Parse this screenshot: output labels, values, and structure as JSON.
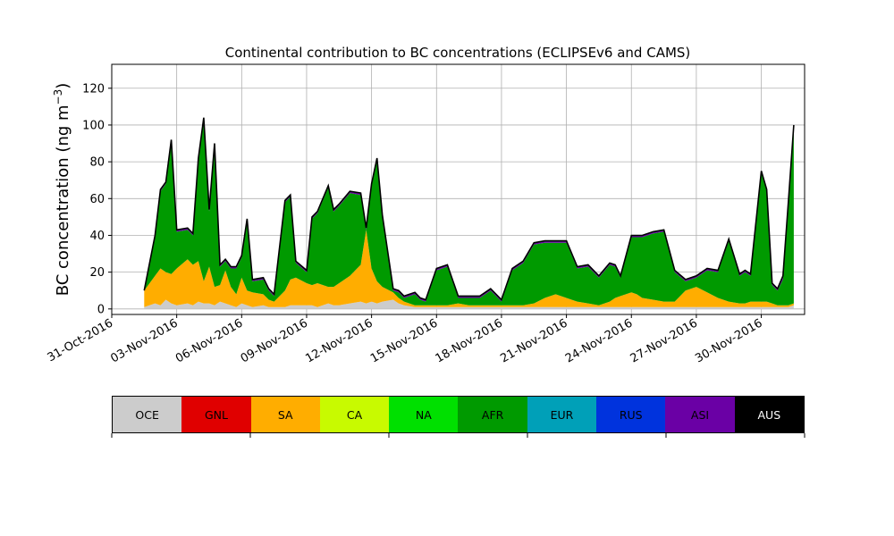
{
  "chart_data": {
    "type": "area",
    "stacked": true,
    "title": "Continental contribution to BC concentrations (ECLIPSEv6 and CAMS)",
    "ylabel": "BC concentration (ng m",
    "ylabel_sup": "−3",
    "ylabel_close": ")",
    "xlabel": "",
    "xlim": [
      "2016-10-31",
      "2016-12-02"
    ],
    "ylim": [
      -3,
      133
    ],
    "grid": true,
    "yticks": [
      0,
      20,
      40,
      60,
      80,
      100,
      120
    ],
    "xticks": [
      "31-Oct-2016",
      "03-Nov-2016",
      "06-Nov-2016",
      "09-Nov-2016",
      "12-Nov-2016",
      "15-Nov-2016",
      "18-Nov-2016",
      "21-Nov-2016",
      "24-Nov-2016",
      "27-Nov-2016",
      "30-Nov-2016"
    ],
    "legend": {
      "type": "colorbar",
      "placement": "bottom"
    },
    "x": [
      "2016-11-01T12:00",
      "2016-11-02T00:00",
      "2016-11-02T06:00",
      "2016-11-02T12:00",
      "2016-11-02T18:00",
      "2016-11-03T00:00",
      "2016-11-03T12:00",
      "2016-11-03T18:00",
      "2016-11-04T00:00",
      "2016-11-04T06:00",
      "2016-11-04T12:00",
      "2016-11-04T18:00",
      "2016-11-05T00:00",
      "2016-11-05T06:00",
      "2016-11-05T12:00",
      "2016-11-05T18:00",
      "2016-11-06T00:00",
      "2016-11-06T06:00",
      "2016-11-06T12:00",
      "2016-11-07T00:00",
      "2016-11-07T06:00",
      "2016-11-07T12:00",
      "2016-11-08T00:00",
      "2016-11-08T06:00",
      "2016-11-08T12:00",
      "2016-11-09T00:00",
      "2016-11-09T06:00",
      "2016-11-09T12:00",
      "2016-11-10T00:00",
      "2016-11-10T06:00",
      "2016-11-10T12:00",
      "2016-11-11T00:00",
      "2016-11-11T12:00",
      "2016-11-11T18:00",
      "2016-11-12T00:00",
      "2016-11-12T06:00",
      "2016-11-12T12:00",
      "2016-11-13T00:00",
      "2016-11-13T06:00",
      "2016-11-13T12:00",
      "2016-11-14T00:00",
      "2016-11-14T06:00",
      "2016-11-14T12:00",
      "2016-11-15T00:00",
      "2016-11-15T12:00",
      "2016-11-16T00:00",
      "2016-11-16T12:00",
      "2016-11-17T00:00",
      "2016-11-17T12:00",
      "2016-11-18T00:00",
      "2016-11-18T12:00",
      "2016-11-19T00:00",
      "2016-11-19T12:00",
      "2016-11-20T00:00",
      "2016-11-20T12:00",
      "2016-11-21T00:00",
      "2016-11-21T12:00",
      "2016-11-22T00:00",
      "2016-11-22T12:00",
      "2016-11-23T00:00",
      "2016-11-23T06:00",
      "2016-11-23T12:00",
      "2016-11-24T00:00",
      "2016-11-24T06:00",
      "2016-11-24T12:00",
      "2016-11-25T00:00",
      "2016-11-25T12:00",
      "2016-11-26T00:00",
      "2016-11-26T12:00",
      "2016-11-27T00:00",
      "2016-11-27T12:00",
      "2016-11-28T00:00",
      "2016-11-28T12:00",
      "2016-11-29T00:00",
      "2016-11-29T06:00",
      "2016-11-29T12:00",
      "2016-11-30T00:00",
      "2016-11-30T06:00",
      "2016-11-30T12:00",
      "2016-11-30T18:00",
      "2016-12-01T00:00",
      "2016-12-01T06:00",
      "2016-12-01T12:00"
    ],
    "series": [
      {
        "name": "OCE",
        "color": "#cccccc",
        "values": [
          1,
          3,
          2,
          5,
          3,
          2,
          3,
          2,
          4,
          3,
          3,
          2,
          4,
          3,
          2,
          1,
          3,
          2,
          1,
          2,
          1,
          1,
          1,
          2,
          2,
          2,
          2,
          1,
          3,
          2,
          2,
          3,
          4,
          3,
          4,
          3,
          4,
          5,
          3,
          2,
          1,
          1,
          1,
          1,
          1,
          1,
          1,
          1,
          1,
          1,
          1,
          1,
          1,
          1,
          1,
          1,
          1,
          1,
          1,
          1,
          1,
          1,
          1,
          1,
          1,
          1,
          1,
          1,
          1,
          1,
          1,
          1,
          1,
          1,
          1,
          1,
          1,
          1,
          1,
          1,
          1,
          1,
          2
        ]
      },
      {
        "name": "GNL",
        "color": "#e00000",
        "values": [
          0,
          0,
          0,
          0,
          0,
          0,
          0,
          0,
          0,
          0,
          0,
          0,
          0,
          0,
          0,
          0,
          0,
          0,
          0,
          0,
          0,
          0,
          0,
          0,
          0,
          0,
          0,
          0,
          0,
          0,
          0,
          0,
          0,
          0,
          0,
          0,
          0,
          0,
          0,
          0,
          0,
          0,
          0,
          0,
          0,
          0,
          0,
          0,
          0,
          0,
          0,
          0,
          0,
          0,
          0,
          0,
          0,
          0,
          0,
          0,
          0,
          0,
          0,
          0,
          0,
          0,
          0,
          0,
          0,
          0,
          0,
          0,
          0,
          0,
          0,
          0,
          0,
          0,
          0,
          0,
          0,
          0,
          0
        ]
      },
      {
        "name": "SA",
        "color": "#ffad00",
        "values": [
          9,
          15,
          20,
          15,
          16,
          20,
          24,
          22,
          22,
          12,
          20,
          10,
          9,
          18,
          10,
          7,
          14,
          8,
          8,
          6,
          4,
          3,
          9,
          14,
          15,
          12,
          11,
          13,
          9,
          10,
          12,
          15,
          20,
          40,
          18,
          12,
          8,
          4,
          3,
          2,
          1,
          1,
          1,
          1,
          1,
          2,
          1,
          1,
          1,
          1,
          1,
          1,
          2,
          5,
          7,
          5,
          3,
          2,
          1,
          3,
          5,
          6,
          8,
          7,
          5,
          4,
          3,
          3,
          9,
          11,
          8,
          5,
          3,
          2,
          2,
          3,
          3,
          3,
          2,
          1,
          1,
          1,
          1
        ]
      },
      {
        "name": "CA",
        "color": "#c8fa00",
        "values": [
          0,
          0,
          0,
          0,
          0,
          0,
          0,
          0,
          0,
          0,
          0,
          0,
          0,
          0,
          0,
          0,
          0,
          0,
          0,
          0,
          0,
          0,
          0,
          0,
          0,
          0,
          0,
          0,
          0,
          0,
          0,
          0,
          0,
          0,
          0,
          0,
          0,
          0,
          0,
          0,
          0,
          0,
          0,
          0,
          0,
          0,
          0,
          0,
          0,
          0,
          0,
          0,
          0,
          0,
          0,
          0,
          0,
          0,
          0,
          0,
          0,
          0,
          0,
          0,
          0,
          0,
          0,
          0,
          0,
          0,
          0,
          0,
          0,
          0,
          0,
          0,
          0,
          0,
          0,
          0,
          0,
          0,
          0
        ]
      },
      {
        "name": "NA",
        "color": "#00e000",
        "values": [
          0,
          0,
          0,
          0,
          0,
          0,
          0,
          0,
          0,
          0,
          0,
          0,
          0,
          0,
          0,
          0,
          0,
          0,
          0,
          0,
          0,
          0,
          0,
          0,
          0,
          0,
          0,
          0,
          0,
          0,
          0,
          0,
          0,
          0,
          0,
          0,
          0,
          0,
          0,
          0,
          0,
          0,
          0,
          0,
          0,
          0,
          0,
          0,
          0,
          0,
          0,
          0,
          0,
          0,
          0,
          0,
          0,
          0,
          0,
          0,
          0,
          0,
          0,
          0,
          0,
          0,
          0,
          0,
          0,
          0,
          0,
          0,
          0,
          0,
          0,
          0,
          0,
          0,
          0,
          0,
          0,
          0,
          0
        ]
      },
      {
        "name": "AFR",
        "color": "#009a00",
        "values": [
          0,
          21,
          42,
          48,
          72,
          20,
          16,
          16,
          55,
          88,
          30,
          77,
          10,
          5,
          10,
          14,
          11,
          38,
          6,
          8,
          5,
          3,
          48,
          45,
          8,
          6,
          36,
          38,
          54,
          41,
          42,
          45,
          38,
          0,
          45,
          66,
          38,
          1,
          3,
          2,
          6,
          3,
          2,
          19,
          21,
          3,
          4,
          4,
          8,
          2,
          19,
          23,
          32,
          30,
          28,
          30,
          18,
          20,
          15,
          20,
          17,
          10,
          30,
          31,
          33,
          36,
          38,
          16,
          5,
          5,
          12,
          14,
          33,
          15,
          17,
          14,
          70,
          60,
          10,
          8,
          14,
          54,
          95
        ]
      },
      {
        "name": "EUR",
        "color": "#00a0b8",
        "values": [
          0,
          0,
          0,
          0,
          0,
          0,
          0,
          0,
          0,
          0,
          0,
          0,
          0,
          0,
          0,
          0,
          0,
          0,
          0,
          0,
          0,
          0,
          0,
          0,
          0,
          0,
          0,
          0,
          0,
          0,
          0,
          0,
          0,
          0,
          0,
          0,
          0,
          0,
          0,
          0,
          0,
          0,
          0,
          0,
          0,
          0,
          0,
          0,
          0,
          0,
          0,
          0,
          0,
          0,
          0,
          0,
          0,
          0,
          0,
          0,
          0,
          0,
          0,
          0,
          0,
          0,
          0,
          0,
          0,
          0,
          0,
          0,
          0,
          0,
          0,
          0,
          0,
          0,
          0,
          0,
          0,
          0,
          0
        ]
      },
      {
        "name": "RUS",
        "color": "#0033dd",
        "values": [
          0,
          0,
          0,
          0,
          0,
          0,
          0,
          0,
          0,
          0,
          0,
          0,
          0,
          0,
          0,
          0,
          0,
          0,
          0,
          0,
          0,
          0,
          0,
          0,
          0,
          0,
          0,
          0,
          0,
          0,
          0,
          0,
          0,
          0,
          0,
          0,
          0,
          0,
          0,
          0,
          0,
          0,
          0,
          0,
          0,
          0,
          0,
          0,
          0,
          0,
          0,
          0,
          0,
          0,
          0,
          0,
          0,
          0,
          0,
          0,
          0,
          0,
          0,
          0,
          0,
          0,
          0,
          0,
          0,
          0,
          0,
          0,
          0,
          0,
          0,
          0,
          0,
          0,
          0,
          0,
          0,
          0,
          0
        ]
      },
      {
        "name": "ASI",
        "color": "#6a00a5",
        "values": [
          0,
          1,
          1,
          1,
          1,
          1,
          1,
          1,
          1,
          1,
          1,
          1,
          1,
          1,
          1,
          1,
          1,
          1,
          1,
          1,
          1,
          1,
          1,
          1,
          1,
          1,
          1,
          1,
          1,
          1,
          1,
          1,
          1,
          1,
          1,
          1,
          1,
          1,
          1,
          1,
          1,
          1,
          1,
          1,
          1,
          1,
          1,
          1,
          1,
          1,
          1,
          1,
          1,
          1,
          1,
          1,
          1,
          1,
          1,
          1,
          1,
          1,
          1,
          1,
          1,
          1,
          1,
          1,
          1,
          1,
          1,
          1,
          1,
          1,
          1,
          1,
          1,
          1,
          1,
          1,
          2,
          2,
          2
        ]
      },
      {
        "name": "AUS",
        "color": "#000000",
        "values": [
          0,
          0,
          0,
          0,
          0,
          0,
          0,
          0,
          0,
          0,
          0,
          0,
          0,
          0,
          0,
          0,
          0,
          0,
          0,
          0,
          0,
          0,
          0,
          0,
          0,
          0,
          0,
          0,
          0,
          0,
          0,
          0,
          0,
          0,
          0,
          0,
          0,
          0,
          0,
          0,
          0,
          0,
          0,
          0,
          0,
          0,
          0,
          0,
          0,
          0,
          0,
          0,
          0,
          0,
          0,
          0,
          0,
          0,
          0,
          0,
          0,
          0,
          0,
          0,
          0,
          0,
          0,
          0,
          0,
          0,
          0,
          0,
          0,
          0,
          0,
          0,
          0,
          0,
          0,
          0,
          0,
          0,
          0
        ]
      }
    ]
  }
}
